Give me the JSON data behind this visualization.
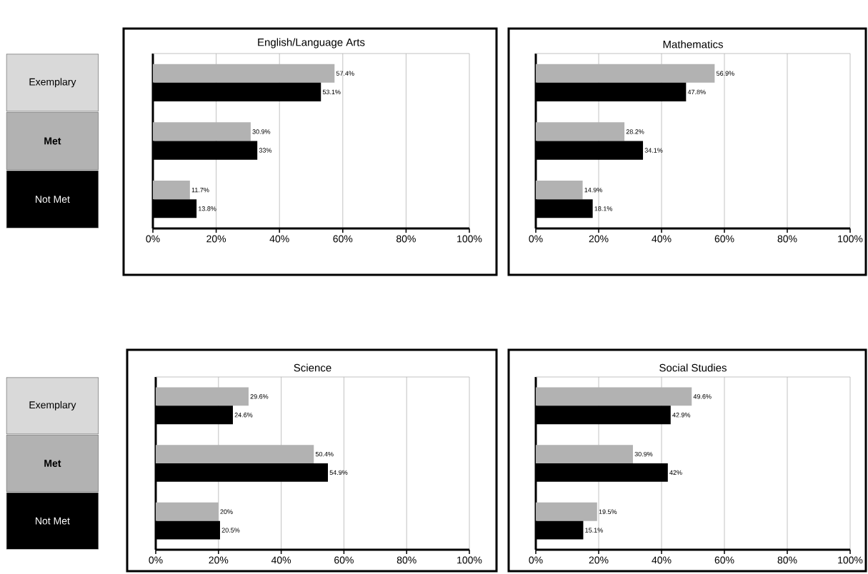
{
  "chart_data": [
    {
      "type": "bar",
      "orientation": "horizontal",
      "title": "English/Language Arts",
      "categories": [
        "Exemplary",
        "Met",
        "Not Met"
      ],
      "series": [
        {
          "color": "#b2b2b2",
          "values": [
            57.4,
            30.9,
            11.7
          ],
          "value_labels": [
            "57.4%",
            "30.9%",
            "11.7%"
          ]
        },
        {
          "color": "#000000",
          "values": [
            53.1,
            33,
            13.8
          ],
          "value_labels": [
            "53.1%",
            "33%",
            "13.8%"
          ]
        }
      ],
      "xlim": [
        0,
        100
      ],
      "xticks": [
        {
          "value": 0,
          "label": "0%"
        },
        {
          "value": 20,
          "label": "20%"
        },
        {
          "value": 40,
          "label": "40%"
        },
        {
          "value": 60,
          "label": "60%"
        },
        {
          "value": 80,
          "label": "80%"
        },
        {
          "value": 100,
          "label": "100%"
        }
      ],
      "grid": "x"
    },
    {
      "type": "bar",
      "orientation": "horizontal",
      "title": "Mathematics",
      "categories": [
        null,
        null,
        null
      ],
      "series": [
        {
          "color": "#b2b2b2",
          "values": [
            56.9,
            28.2,
            14.9
          ],
          "value_labels": [
            "56.9%",
            "28.2%",
            "14.9%"
          ]
        },
        {
          "color": "#000000",
          "values": [
            47.8,
            34.1,
            18.1
          ],
          "value_labels": [
            "47.8%",
            "34.1%",
            "18.1%"
          ]
        }
      ],
      "xlim": [
        0,
        100
      ],
      "xticks": [
        {
          "value": 0,
          "label": "0%"
        },
        {
          "value": 20,
          "label": "20%"
        },
        {
          "value": 40,
          "label": "40%"
        },
        {
          "value": 60,
          "label": "60%"
        },
        {
          "value": 80,
          "label": "80%"
        },
        {
          "value": 100,
          "label": "100%"
        }
      ],
      "grid": "x",
      "tick_labels": "x"
    },
    {
      "type": "bar",
      "orientation": "horizontal",
      "title": "Science",
      "categories": [
        "Exemplary",
        "Met",
        "Not Met"
      ],
      "series": [
        {
          "color": "#b2b2b2",
          "values": [
            29.6,
            50.4,
            20
          ],
          "value_labels": [
            "29.6%",
            "50.4%",
            "20%"
          ]
        },
        {
          "color": "#000000",
          "values": [
            24.6,
            54.9,
            20.5
          ],
          "value_labels": [
            "24.6%",
            "54.9%",
            "20.5%"
          ]
        }
      ],
      "xlim": [
        0,
        100
      ],
      "xticks": [
        {
          "value": 0,
          "label": "0%"
        },
        {
          "value": 20,
          "label": "20%"
        },
        {
          "value": 40,
          "label": "40%"
        },
        {
          "value": 60,
          "label": "60%"
        },
        {
          "value": 80,
          "label": "80%"
        },
        {
          "value": 100,
          "label": "100%"
        }
      ],
      "grid": "x"
    },
    {
      "type": "bar",
      "orientation": "horizontal",
      "title": "Social Studies",
      "categories": [
        null,
        null,
        null
      ],
      "series": [
        {
          "color": "#b2b2b2",
          "values": [
            49.6,
            30.9,
            19.5
          ],
          "value_labels": [
            "49.6%",
            "30.9%",
            "19.5%"
          ]
        },
        {
          "color": "#000000",
          "values": [
            42.9,
            42,
            15.1
          ],
          "value_labels": [
            "42.9%",
            "42%",
            "15.1%"
          ]
        }
      ],
      "xlim": [
        0,
        100
      ],
      "xticks": [
        {
          "value": 0,
          "label": "0%"
        },
        {
          "value": 20,
          "label": "20%"
        },
        {
          "value": 40,
          "label": "40%"
        },
        {
          "value": 60,
          "label": "60%"
        },
        {
          "value": 80,
          "label": "80%"
        },
        {
          "value": 100,
          "label": "100%"
        }
      ],
      "grid": "x",
      "tick_labels": "x"
    }
  ]
}
